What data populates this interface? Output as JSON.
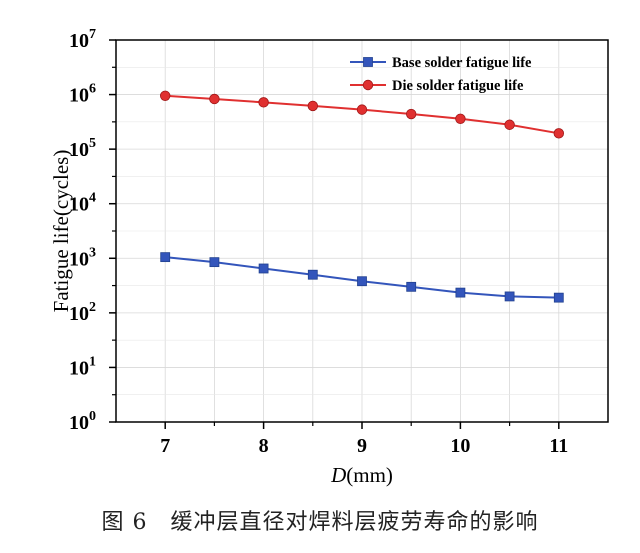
{
  "caption": "图 6　缓冲层直径对焊料层疲劳寿命的影响",
  "chart_data": {
    "type": "line",
    "x": [
      7,
      7.5,
      8,
      8.5,
      9,
      9.5,
      10,
      10.5,
      11
    ],
    "series": [
      {
        "name": "Base solder fatigue life",
        "color": "#3355bb",
        "marker": "square",
        "values": [
          1050,
          850,
          650,
          500,
          380,
          300,
          235,
          200,
          190
        ]
      },
      {
        "name": "Die solder fatigue life",
        "color": "#e03030",
        "marker": "circle",
        "values": [
          950000,
          830000,
          720000,
          620000,
          530000,
          440000,
          360000,
          280000,
          195000
        ]
      }
    ],
    "xlabel_italic": "D",
    "xlabel_rest": "(mm)",
    "ylabel": "Fatigue life(cycles)",
    "x_ticks": [
      7,
      8,
      9,
      10,
      11
    ],
    "y_ticks": [
      {
        "base": "10",
        "exp": "0"
      },
      {
        "base": "10",
        "exp": "1"
      },
      {
        "base": "10",
        "exp": "2"
      },
      {
        "base": "10",
        "exp": "3"
      },
      {
        "base": "10",
        "exp": "4"
      },
      {
        "base": "10",
        "exp": "5"
      },
      {
        "base": "10",
        "exp": "6"
      },
      {
        "base": "10",
        "exp": "7"
      }
    ],
    "xlim": [
      6.5,
      11.5
    ],
    "ylim": [
      1,
      10000000
    ],
    "yscale": "log",
    "grid": true,
    "legend_position": "top-right"
  }
}
